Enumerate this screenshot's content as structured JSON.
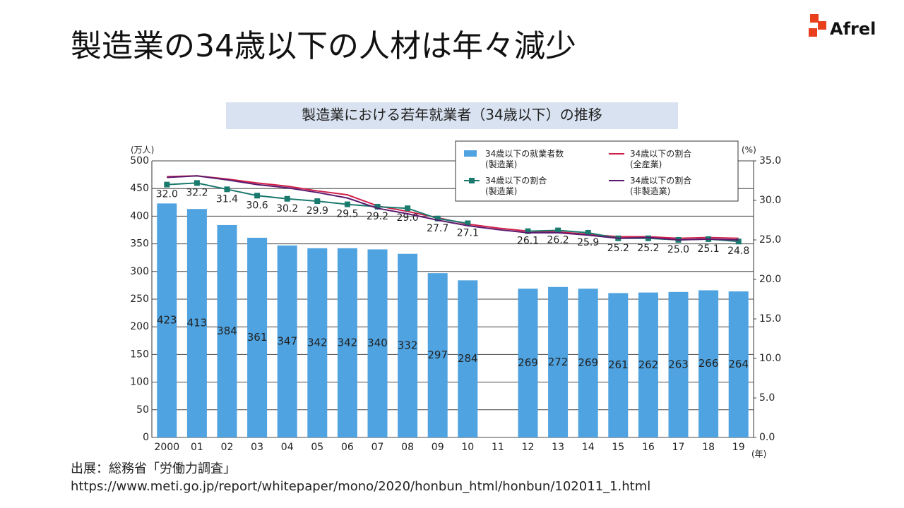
{
  "slide": {
    "title": "製造業の34歳以下の人材は年々減少",
    "logo": "Afrel",
    "source": "出展：総務省「労働力調査」",
    "url": "https://www.meti.go.jp/report/whitepaper/mono/2020/honbun_html/honbun/102011_1.html"
  },
  "chart_data": {
    "type": "bar-line",
    "title": "製造業における若年就業者（34歳以下）の推移",
    "y_label": "(万人)",
    "y2_label": "(%)",
    "x_label": "(年)",
    "categories": [
      "2000",
      "01",
      "02",
      "03",
      "04",
      "05",
      "06",
      "07",
      "08",
      "09",
      "10",
      "11",
      "12",
      "13",
      "14",
      "15",
      "16",
      "17",
      "18",
      "19"
    ],
    "ylim": [
      0,
      500
    ],
    "yticks": [
      0,
      50,
      100,
      150,
      200,
      250,
      300,
      350,
      400,
      450,
      500
    ],
    "y2lim": [
      0,
      35
    ],
    "y2ticks": [
      {
        "value": 0,
        "label": "0.0"
      },
      {
        "value": 5,
        "label": "5.0"
      },
      {
        "value": 10,
        "label": "10.0"
      },
      {
        "value": 15,
        "label": "15.0"
      },
      {
        "value": 20,
        "label": "20.0"
      },
      {
        "value": 25,
        "label": "25.0"
      },
      {
        "value": 30,
        "label": "30.0"
      },
      {
        "value": 35,
        "label": "35.0"
      }
    ],
    "grid": true,
    "legend": "top-right",
    "series": [
      {
        "name": "34歳以下の就業者数\n(製造業)",
        "kind": "bar",
        "color": "#4fa3e0",
        "values": [
          423,
          413,
          384,
          361,
          347,
          342,
          342,
          340,
          332,
          297,
          284,
          null,
          269,
          272,
          269,
          261,
          262,
          263,
          266,
          264
        ]
      },
      {
        "name": "34歳以下の割合\n(全産業)",
        "kind": "line",
        "axis": "y2",
        "color": "#d0204a",
        "values": [
          33.0,
          33.1,
          32.7,
          32.2,
          31.8,
          31.2,
          30.7,
          29.3,
          28.6,
          27.8,
          27.0,
          26.5,
          26.1,
          26.0,
          25.7,
          25.4,
          25.4,
          25.2,
          25.3,
          25.2
        ]
      },
      {
        "name": "34歳以下の割合\n(製造業)",
        "kind": "line",
        "axis": "y2",
        "marker": true,
        "color": "#1a7a6e",
        "values": [
          32.0,
          32.2,
          31.4,
          30.6,
          30.2,
          29.9,
          29.5,
          29.2,
          29.0,
          27.7,
          27.1,
          null,
          26.1,
          26.2,
          25.9,
          25.2,
          25.2,
          25.0,
          25.1,
          24.8
        ],
        "value_labels": [
          "32.0",
          "32.2",
          "31.4",
          "30.6",
          "30.2",
          "29.9",
          "29.5",
          "29.2",
          "29.0",
          "27.7",
          "27.1",
          null,
          "26.1",
          "26.2",
          "25.9",
          "25.2",
          "25.2",
          "25.0",
          "25.1",
          "24.8"
        ]
      },
      {
        "name": "34歳以下の割合\n(非製造業)",
        "kind": "line",
        "axis": "y2",
        "color": "#5a1a6e",
        "values": [
          32.9,
          33.1,
          32.6,
          32.0,
          31.6,
          31.0,
          30.3,
          29.0,
          28.3,
          27.5,
          26.8,
          26.3,
          25.9,
          25.9,
          25.6,
          25.2,
          25.3,
          25.0,
          25.1,
          25.0
        ]
      }
    ]
  }
}
